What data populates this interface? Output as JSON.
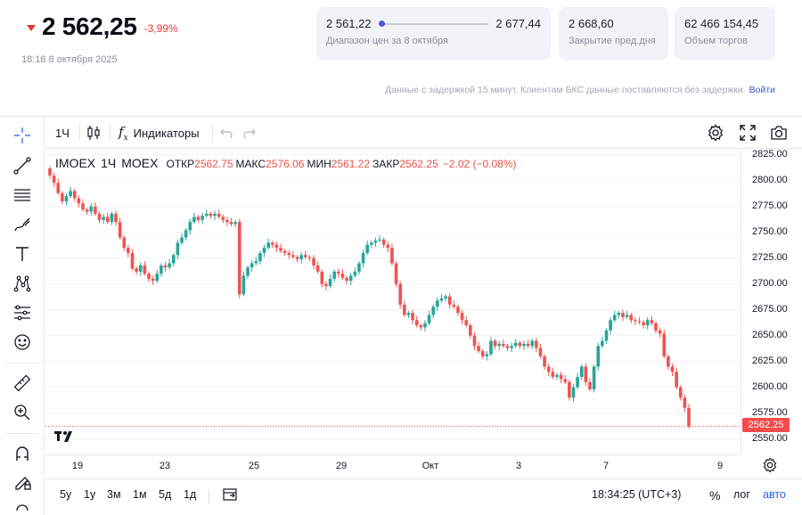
{
  "quote": {
    "price": "2 562,25",
    "change": "-3,99%",
    "timestamp": "18:18 8 октября 2025"
  },
  "cards": {
    "range": {
      "low": "2 561,22",
      "high": "2 677,44",
      "label": "Диапазон цен за 8 октября",
      "position": 0.0
    },
    "prev_close": {
      "value": "2 668,60",
      "label": "Закрытие пред.дня"
    },
    "volume": {
      "value": "62 466 154,45",
      "label": "Объем торгов"
    }
  },
  "notice": {
    "text": "Данные с задержкой 15 минут. Клиентам БКС данные поставляются без задержки.",
    "link": "Войти"
  },
  "toolbar": {
    "interval": "1Ч",
    "indicators": "Индикаторы"
  },
  "legend": {
    "symbol": "IMOEX",
    "interval": "1Ч",
    "exchange": "MOEX",
    "open_label": "ОТКР",
    "open": "2562.75",
    "high_label": "МАКС",
    "high": "2576.06",
    "low_label": "МИН",
    "low": "2561.22",
    "close_label": "ЗАКР",
    "close": "2562.25",
    "change": "−2.02 (−0.08%)"
  },
  "price_label": "2562.25",
  "bottom": {
    "ranges": [
      "5y",
      "1y",
      "3м",
      "1м",
      "5д",
      "1д"
    ],
    "clock": "18:34:25 (UTC+3)",
    "percent": "%",
    "log": "лог",
    "auto": "авто"
  },
  "colors": {
    "up": "#26a69a",
    "down": "#ef5350",
    "accent": "#2962ff",
    "negative": "#e53935"
  },
  "chart_data": {
    "type": "candlestick",
    "ylim": [
      2535,
      2830
    ],
    "y_ticks": [
      "2825.00",
      "2800.00",
      "2775.00",
      "2750.00",
      "2725.00",
      "2700.00",
      "2675.00",
      "2650.00",
      "2625.00",
      "2600.00",
      "2575.00",
      "2550.00"
    ],
    "x_ticks": [
      "19",
      "23",
      "25",
      "29",
      "Окт",
      "3",
      "7",
      "9"
    ],
    "last_price": 2562.25,
    "closes": [
      2805,
      2798,
      2788,
      2780,
      2785,
      2790,
      2783,
      2778,
      2772,
      2770,
      2775,
      2768,
      2762,
      2765,
      2760,
      2768,
      2760,
      2745,
      2735,
      2730,
      2715,
      2712,
      2718,
      2710,
      2705,
      2703,
      2710,
      2718,
      2716,
      2720,
      2728,
      2740,
      2745,
      2752,
      2760,
      2765,
      2762,
      2766,
      2768,
      2766,
      2768,
      2765,
      2762,
      2760,
      2758,
      2760,
      2690,
      2708,
      2716,
      2720,
      2722,
      2730,
      2735,
      2740,
      2738,
      2735,
      2732,
      2730,
      2728,
      2726,
      2724,
      2728,
      2726,
      2725,
      2718,
      2712,
      2700,
      2698,
      2705,
      2712,
      2710,
      2706,
      2703,
      2708,
      2712,
      2720,
      2730,
      2738,
      2740,
      2742,
      2743,
      2738,
      2735,
      2720,
      2700,
      2680,
      2670,
      2672,
      2665,
      2660,
      2658,
      2662,
      2670,
      2678,
      2684,
      2686,
      2688,
      2680,
      2678,
      2672,
      2665,
      2660,
      2650,
      2640,
      2635,
      2630,
      2632,
      2645,
      2640,
      2642,
      2640,
      2638,
      2640,
      2643,
      2640,
      2642,
      2640,
      2645,
      2638,
      2630,
      2620,
      2615,
      2610,
      2612,
      2608,
      2605,
      2590,
      2600,
      2610,
      2620,
      2605,
      2598,
      2620,
      2640,
      2645,
      2655,
      2665,
      2670,
      2672,
      2668,
      2670,
      2665,
      2664,
      2663,
      2660,
      2665,
      2662,
      2655,
      2652,
      2630,
      2620,
      2615,
      2600,
      2590,
      2580,
      2562
    ]
  }
}
